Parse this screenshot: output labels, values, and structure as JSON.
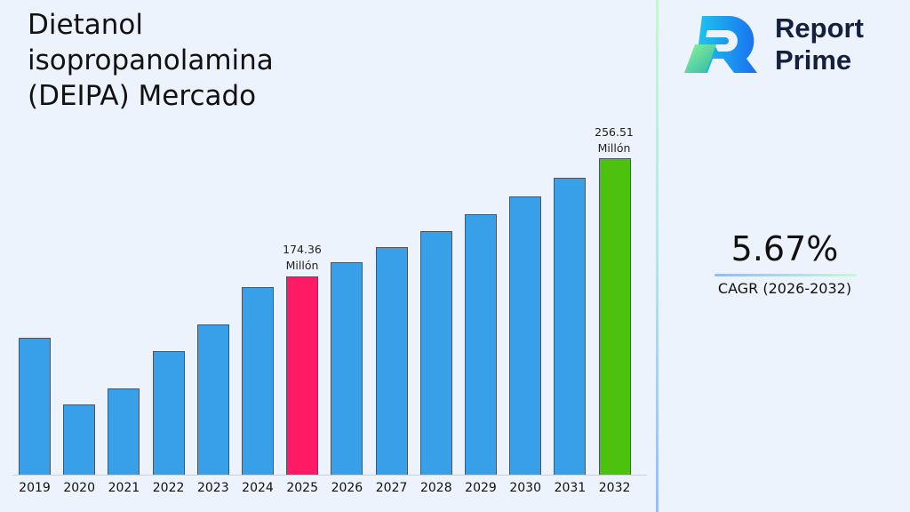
{
  "header": {
    "title": "Dietanol isopropanolamina (DEIPA) Mercado"
  },
  "brand": {
    "line1": "Report",
    "line2": "Prime"
  },
  "cagr": {
    "value": "5.67%",
    "label": "CAGR (2026-2032)"
  },
  "annotations": {
    "a2025": {
      "value": "174.36",
      "unit": "Millón"
    },
    "a2032": {
      "value": "256.51",
      "unit": "Millón"
    }
  },
  "colors": {
    "default": "#38a0e8",
    "highlight_base": "#ff1a66",
    "highlight_end": "#4cc20e"
  },
  "chart_data": {
    "type": "bar",
    "title": "Dietanol isopropanolamina (DEIPA) Mercado",
    "xlabel": "",
    "ylabel": "Millón",
    "categories": [
      "2019",
      "2020",
      "2021",
      "2022",
      "2023",
      "2024",
      "2025",
      "2026",
      "2027",
      "2028",
      "2029",
      "2030",
      "2031",
      "2032"
    ],
    "values": [
      131.7,
      85.4,
      96.5,
      122.5,
      141.0,
      166.9,
      174.36,
      184.25,
      194.7,
      205.7,
      217.4,
      229.7,
      242.7,
      256.51
    ],
    "annotations": [
      {
        "category": "2025",
        "text": "174.36 Millón"
      },
      {
        "category": "2032",
        "text": "256.51 Millón"
      }
    ],
    "highlight": {
      "2025": "#ff1a66",
      "2032": "#4cc20e"
    },
    "cagr": "5.67%",
    "cagr_period": "2026-2032",
    "grid": false,
    "legend": null
  }
}
